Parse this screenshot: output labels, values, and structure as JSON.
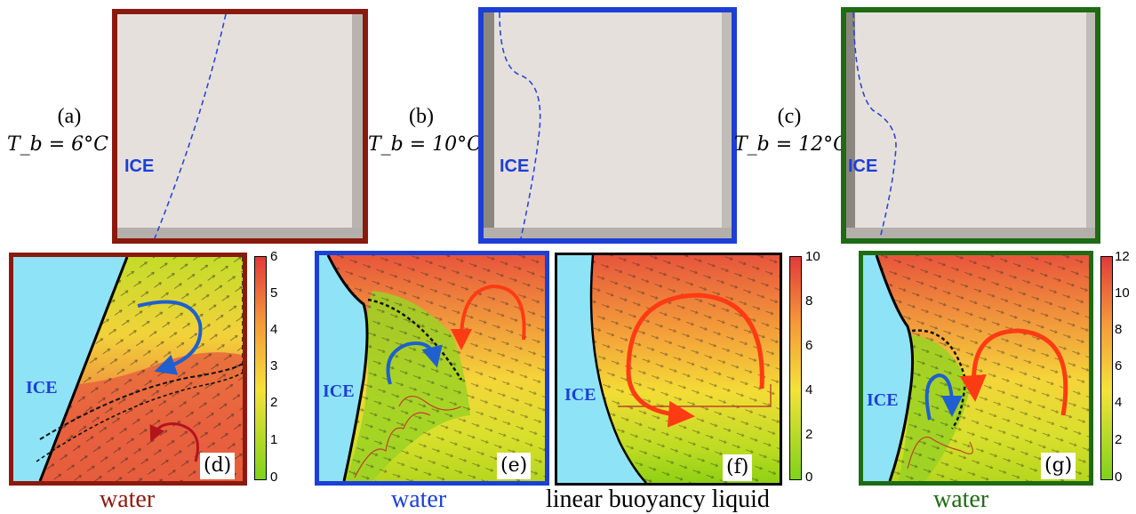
{
  "colors": {
    "brown": "#8b1a0e",
    "blue": "#1c3fd6",
    "green": "#1e6b14",
    "black": "#000000",
    "ice": "#8fe3f7"
  },
  "photos": [
    {
      "label": "(a)",
      "tb": "T_b = 6°C",
      "ice": "ICE"
    },
    {
      "label": "(b)",
      "tb": "T_b = 10°C",
      "ice": "ICE"
    },
    {
      "label": "(c)",
      "tb": "T_b = 12°C",
      "ice": "ICE"
    }
  ],
  "panels": [
    {
      "label": "(d)",
      "ice": "ICE",
      "caption": "water",
      "colorbar_ticks": [
        "6",
        "5",
        "4",
        "3",
        "2",
        "1",
        "0"
      ]
    },
    {
      "label": "(e)",
      "ice": "ICE",
      "caption": "water"
    },
    {
      "label": "(f)",
      "ice": "ICE",
      "caption": "linear buoyancy liquid",
      "colorbar_ticks": [
        "10",
        "8",
        "6",
        "4",
        "2",
        "0"
      ]
    },
    {
      "label": "(g)",
      "ice": "ICE",
      "caption": "water",
      "colorbar_ticks": [
        "12",
        "10",
        "8",
        "6",
        "4",
        "2",
        "0"
      ]
    }
  ]
}
